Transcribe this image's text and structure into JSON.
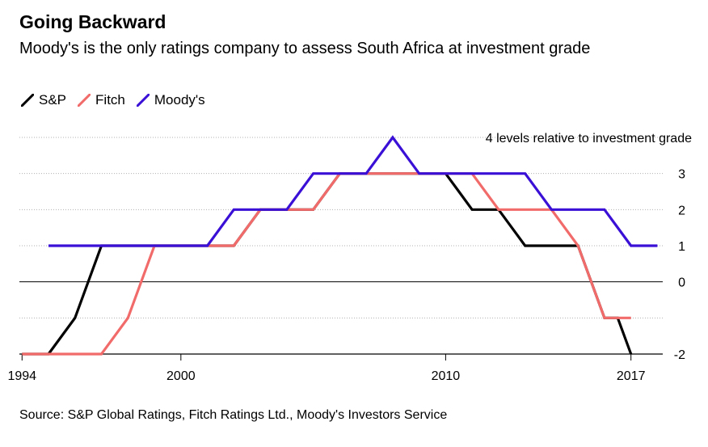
{
  "title": "Going Backward",
  "subtitle": "Moody's is the only ratings company to assess South Africa at investment grade",
  "source": "Source: S&P Global Ratings, Fitch Ratings Ltd., Moody's Investors Service",
  "chart_data": {
    "type": "line",
    "title": "Going Backward",
    "subtitle": "Moody's is the only ratings company to assess South Africa at investment grade",
    "ylabel": "",
    "xlabel": "",
    "x_ticks": [
      1994,
      2000,
      2010,
      2017
    ],
    "y_ticks": [
      -2,
      0,
      1,
      2,
      3
    ],
    "y_top_label": "4 levels relative to investment grade",
    "xlim": [
      1993.9,
      2018.2
    ],
    "ylim": [
      -2,
      4
    ],
    "grid": "horizontal",
    "legend_position": "top-left",
    "series": [
      {
        "name": "S&P",
        "color": "#000000",
        "points": [
          [
            1994,
            -2
          ],
          [
            1995,
            -2
          ],
          [
            1996,
            -1
          ],
          [
            1997,
            1
          ],
          [
            2001,
            1
          ],
          [
            2002,
            1
          ],
          [
            2003,
            2
          ],
          [
            2004,
            2
          ],
          [
            2005,
            2
          ],
          [
            2006,
            3
          ],
          [
            2007,
            3
          ],
          [
            2008,
            3
          ],
          [
            2009,
            3
          ],
          [
            2010,
            3
          ],
          [
            2010.5,
            2.5
          ],
          [
            2011,
            2
          ],
          [
            2012,
            2
          ],
          [
            2013,
            1
          ],
          [
            2014,
            1
          ],
          [
            2015,
            1
          ],
          [
            2016,
            -1
          ],
          [
            2016.5,
            -1
          ],
          [
            2017,
            -2
          ]
        ]
      },
      {
        "name": "Fitch",
        "color": "#f26b6b",
        "points": [
          [
            1994,
            -2
          ],
          [
            1995,
            -2
          ],
          [
            1996,
            -2
          ],
          [
            1997,
            -2
          ],
          [
            1998,
            -1
          ],
          [
            1999,
            1
          ],
          [
            2000,
            1
          ],
          [
            2001,
            1
          ],
          [
            2002,
            1
          ],
          [
            2003,
            2
          ],
          [
            2004,
            2
          ],
          [
            2005,
            2
          ],
          [
            2006,
            3
          ],
          [
            2007,
            3
          ],
          [
            2008,
            3
          ],
          [
            2009,
            3
          ],
          [
            2010,
            3
          ],
          [
            2011,
            3
          ],
          [
            2012,
            2
          ],
          [
            2013,
            2
          ],
          [
            2014,
            2
          ],
          [
            2015,
            1
          ],
          [
            2016,
            -1
          ],
          [
            2017,
            -1
          ]
        ]
      },
      {
        "name": "Moody's",
        "color": "#3a10d6",
        "points": [
          [
            1995,
            1
          ],
          [
            2001,
            1
          ],
          [
            2002,
            2
          ],
          [
            2003,
            2
          ],
          [
            2004,
            2
          ],
          [
            2005,
            3
          ],
          [
            2006,
            3
          ],
          [
            2007,
            3
          ],
          [
            2008,
            4
          ],
          [
            2009,
            3
          ],
          [
            2010,
            3
          ],
          [
            2011,
            3
          ],
          [
            2012,
            3
          ],
          [
            2013,
            3
          ],
          [
            2014,
            2
          ],
          [
            2015,
            2
          ],
          [
            2016,
            2
          ],
          [
            2017,
            1
          ],
          [
            2018,
            1
          ]
        ]
      }
    ]
  }
}
